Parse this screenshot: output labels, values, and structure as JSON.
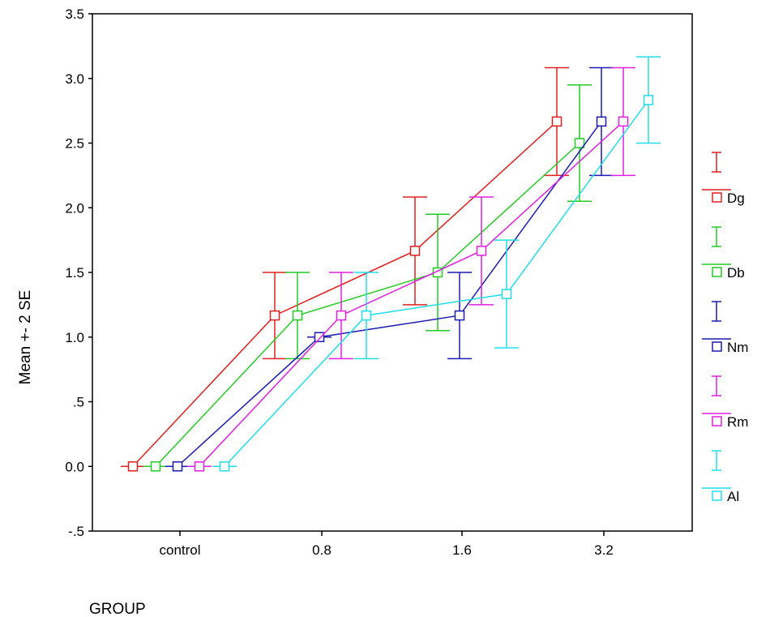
{
  "chart_data": {
    "type": "line",
    "categories": [
      "control",
      "0.8",
      "1.6",
      "3.2"
    ],
    "xlabel": "GROUP",
    "ylabel": "Mean +- 2 SE",
    "ylim": [
      -0.5,
      3.5
    ],
    "yticks": [
      -0.5,
      0.0,
      0.5,
      1.0,
      1.5,
      2.0,
      2.5,
      3.0,
      3.5
    ],
    "ytick_labels": [
      "-.5",
      "0.0",
      ".5",
      "1.0",
      "1.5",
      "2.0",
      "2.5",
      "3.0",
      "3.5"
    ],
    "grid": false,
    "legend_position": "right",
    "series": [
      {
        "name": "Dg",
        "color": "#e0201e",
        "mean": [
          0.0,
          1.167,
          1.667,
          2.667
        ],
        "lower": [
          0.0,
          0.833,
          1.25,
          2.25
        ],
        "upper": [
          0.0,
          1.5,
          2.083,
          3.083
        ]
      },
      {
        "name": "Db",
        "color": "#22cc22",
        "mean": [
          0.0,
          1.167,
          1.5,
          2.5
        ],
        "lower": [
          0.0,
          0.833,
          1.05,
          2.05
        ],
        "upper": [
          0.0,
          1.5,
          1.95,
          2.95
        ]
      },
      {
        "name": "Nm",
        "color": "#1c1cb4",
        "mean": [
          0.0,
          1.0,
          1.167,
          2.667
        ],
        "lower": [
          0.0,
          1.0,
          0.833,
          2.25
        ],
        "upper": [
          0.0,
          1.0,
          1.5,
          3.083
        ]
      },
      {
        "name": "Rm",
        "color": "#e020e0",
        "mean": [
          0.0,
          1.167,
          1.667,
          2.667
        ],
        "lower": [
          0.0,
          0.833,
          1.25,
          2.25
        ],
        "upper": [
          0.0,
          1.5,
          2.083,
          3.083
        ]
      },
      {
        "name": "Al",
        "color": "#22dde8",
        "mean": [
          0.0,
          1.167,
          1.333,
          2.833
        ],
        "lower": [
          0.0,
          0.833,
          0.917,
          2.5
        ],
        "upper": [
          0.0,
          1.5,
          1.75,
          3.167
        ]
      }
    ]
  }
}
